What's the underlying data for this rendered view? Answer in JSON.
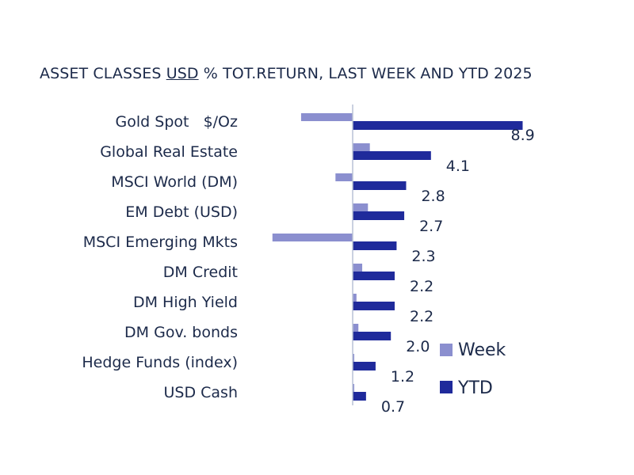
{
  "chart_data": {
    "type": "bar",
    "orientation": "horizontal",
    "title": {
      "prefix": "ASSET CLASSES ",
      "underlined": "USD",
      "suffix": " % TOT.RETURN, LAST WEEK AND YTD 2025"
    },
    "categories": [
      "Gold Spot   $/Oz",
      "Global Real Estate",
      "MSCI World (DM)",
      "EM Debt (USD)",
      "MSCI Emerging Mkts",
      "DM Credit",
      "DM High Yield",
      "DM Gov. bonds",
      "Hedge Funds (index)",
      "USD Cash"
    ],
    "series": [
      {
        "name": "Week",
        "color": "#8b8fcf",
        "values": [
          -2.7,
          0.9,
          -0.9,
          0.8,
          -4.2,
          0.5,
          0.2,
          0.3,
          0.05,
          0.05
        ]
      },
      {
        "name": "YTD",
        "color": "#1f2a9b",
        "values": [
          8.9,
          4.1,
          2.8,
          2.7,
          2.3,
          2.2,
          2.2,
          2.0,
          1.2,
          0.7
        ]
      }
    ],
    "value_labels": [
      "8.9",
      "4.1",
      "2.8",
      "2.7",
      "2.3",
      "2.2",
      "2.2",
      "2.0",
      "1.2",
      "0.7"
    ],
    "legend_position": "bottom-right",
    "axis_color": "#b9c2d6",
    "grid": false
  }
}
